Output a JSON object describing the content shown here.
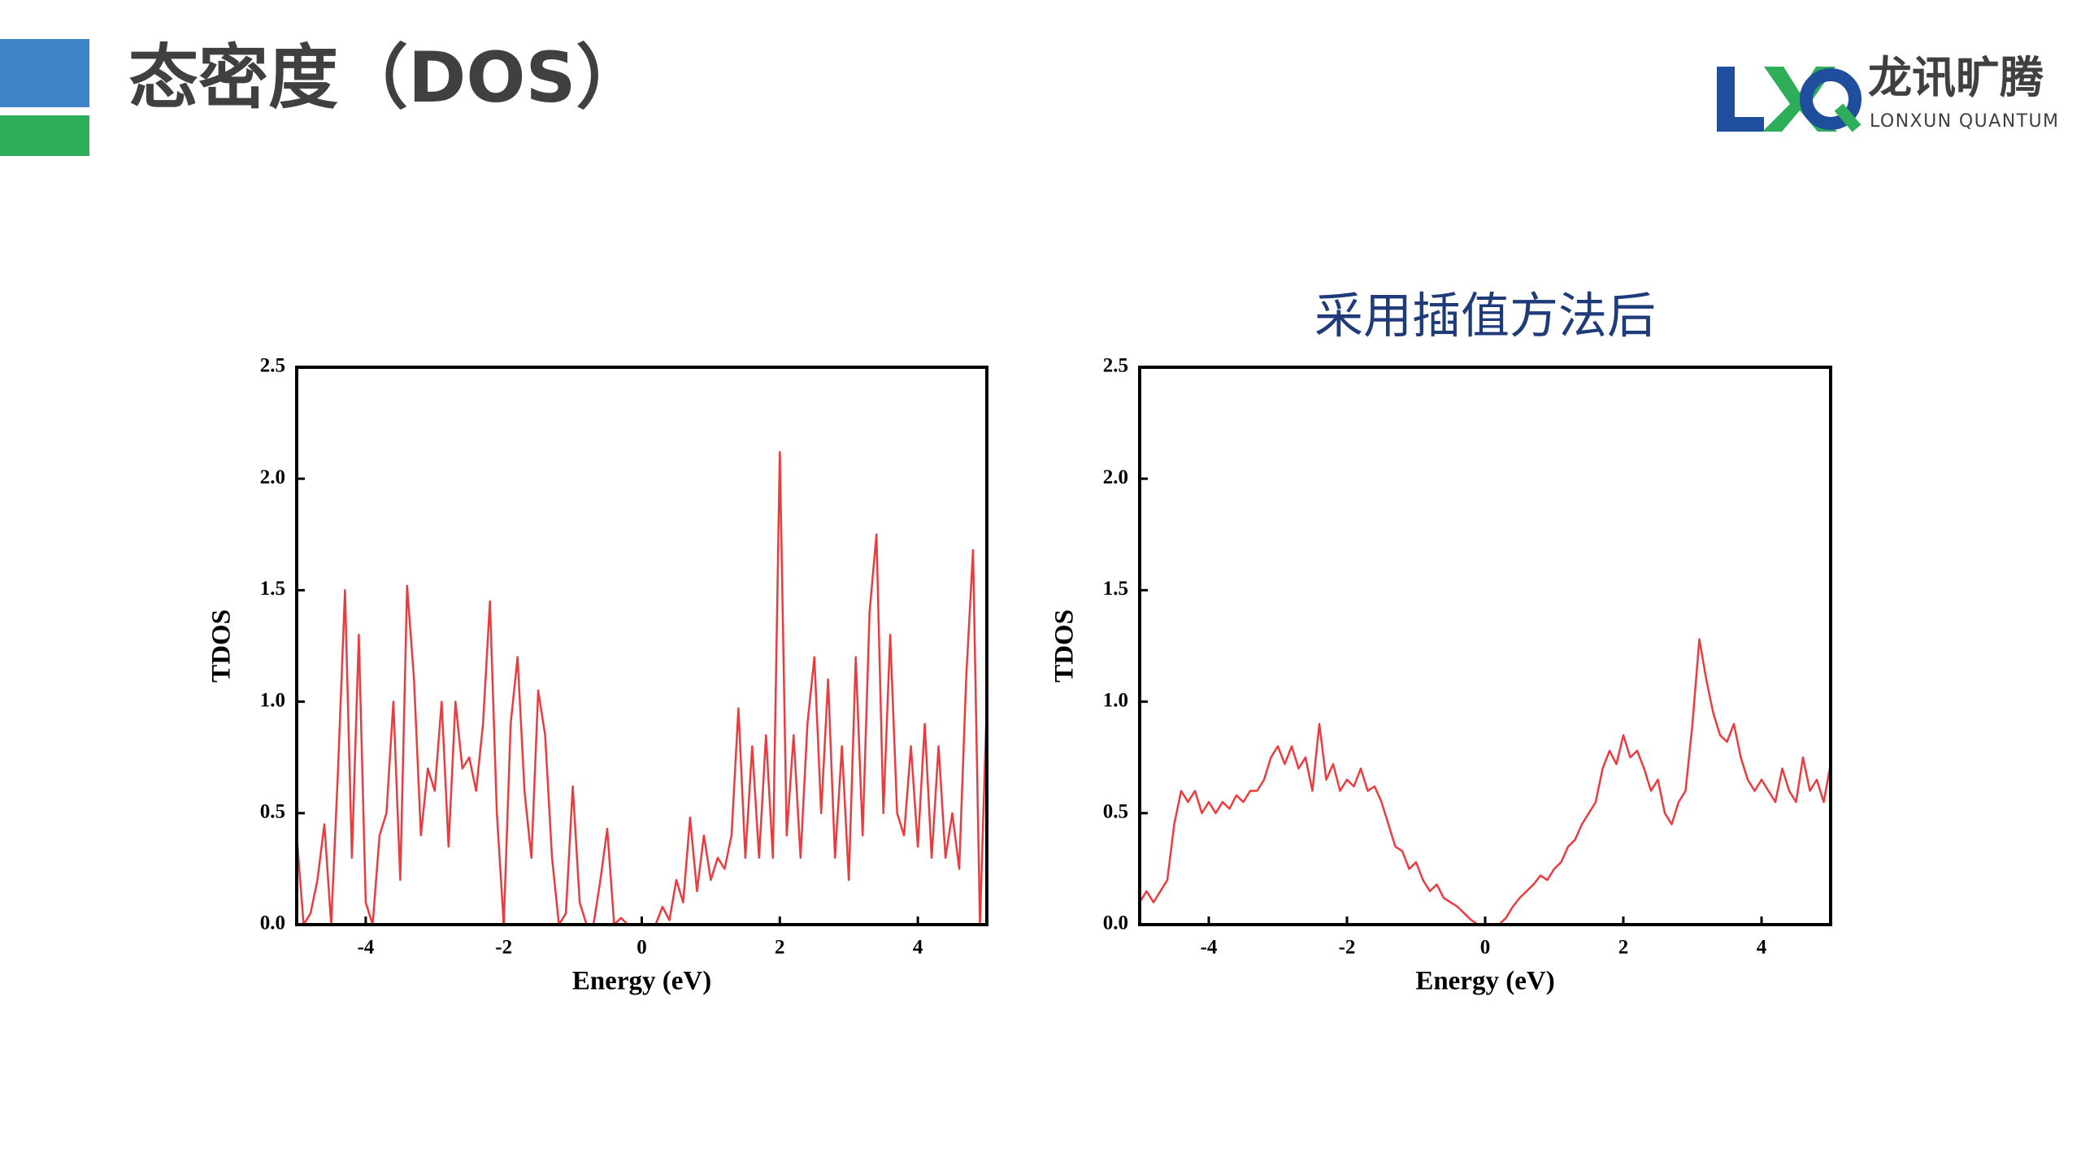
{
  "header": {
    "title": "态密度（DOS）",
    "logo_name": "龙讯旷腾",
    "logo_subtitle": "LONXUN QUANTUM"
  },
  "chart_data": [
    {
      "type": "line",
      "xlabel": "Energy (eV)",
      "ylabel": "TDOS",
      "color": "#ec3b3f",
      "xlim": [
        -5,
        5
      ],
      "ylim": [
        0,
        2.5
      ],
      "xticks": [
        -4,
        -2,
        0,
        2,
        4
      ],
      "yticks": [
        {
          "value": 0,
          "label": "0.0"
        },
        {
          "value": 0.5,
          "label": "0.5"
        },
        {
          "value": 1,
          "label": "1.0"
        },
        {
          "value": 1.5,
          "label": "1.5"
        },
        {
          "value": 2,
          "label": "2.0"
        },
        {
          "value": 2.5,
          "label": "2.5"
        }
      ],
      "x": [
        -5.0,
        -4.9,
        -4.8,
        -4.7,
        -4.6,
        -4.5,
        -4.4,
        -4.3,
        -4.2,
        -4.1,
        -4.0,
        -3.9,
        -3.8,
        -3.7,
        -3.6,
        -3.5,
        -3.4,
        -3.3,
        -3.2,
        -3.1,
        -3.0,
        -2.9,
        -2.8,
        -2.7,
        -2.6,
        -2.5,
        -2.4,
        -2.3,
        -2.2,
        -2.1,
        -2.0,
        -1.9,
        -1.8,
        -1.7,
        -1.6,
        -1.5,
        -1.4,
        -1.3,
        -1.2,
        -1.1,
        -1.0,
        -0.9,
        -0.8,
        -0.7,
        -0.6,
        -0.5,
        -0.4,
        -0.3,
        -0.2,
        -0.1,
        0.0,
        0.1,
        0.2,
        0.3,
        0.4,
        0.5,
        0.6,
        0.7,
        0.8,
        0.9,
        1.0,
        1.1,
        1.2,
        1.3,
        1.4,
        1.5,
        1.6,
        1.7,
        1.8,
        1.9,
        2.0,
        2.1,
        2.2,
        2.3,
        2.4,
        2.5,
        2.6,
        2.7,
        2.8,
        2.9,
        3.0,
        3.1,
        3.2,
        3.3,
        3.4,
        3.5,
        3.6,
        3.7,
        3.8,
        3.9,
        4.0,
        4.1,
        4.2,
        4.3,
        4.4,
        4.5,
        4.6,
        4.7,
        4.8,
        4.9,
        5.0
      ],
      "values": [
        0.4,
        0.0,
        0.05,
        0.2,
        0.45,
        0.0,
        0.7,
        1.5,
        0.3,
        1.3,
        0.1,
        0.0,
        0.4,
        0.5,
        1.0,
        0.2,
        1.52,
        1.1,
        0.4,
        0.7,
        0.6,
        1.0,
        0.35,
        1.0,
        0.7,
        0.75,
        0.6,
        0.9,
        1.45,
        0.5,
        0.0,
        0.9,
        1.2,
        0.6,
        0.3,
        1.05,
        0.85,
        0.3,
        0.0,
        0.05,
        0.62,
        0.1,
        0.0,
        0.0,
        0.2,
        0.43,
        0.0,
        0.03,
        0.0,
        0.0,
        0.0,
        0.0,
        0.0,
        0.08,
        0.02,
        0.2,
        0.1,
        0.48,
        0.15,
        0.4,
        0.2,
        0.3,
        0.25,
        0.4,
        0.97,
        0.3,
        0.8,
        0.3,
        0.85,
        0.3,
        2.12,
        0.4,
        0.85,
        0.3,
        0.9,
        1.2,
        0.5,
        1.1,
        0.3,
        0.8,
        0.2,
        1.2,
        0.4,
        1.4,
        1.75,
        0.5,
        1.3,
        0.5,
        0.4,
        0.8,
        0.35,
        0.9,
        0.3,
        0.8,
        0.3,
        0.5,
        0.25,
        1.1,
        1.68,
        0.0,
        1.0
      ]
    },
    {
      "type": "line",
      "title": "采用插值方法后",
      "xlabel": "Energy (eV)",
      "ylabel": "TDOS",
      "color": "#ec3b3f",
      "xlim": [
        -5,
        5
      ],
      "ylim": [
        0,
        2.5
      ],
      "xticks": [
        -4,
        -2,
        0,
        2,
        4
      ],
      "yticks": [
        {
          "value": 0,
          "label": "0.0"
        },
        {
          "value": 0.5,
          "label": "0.5"
        },
        {
          "value": 1,
          "label": "1.0"
        },
        {
          "value": 1.5,
          "label": "1.5"
        },
        {
          "value": 2,
          "label": "2.0"
        },
        {
          "value": 2.5,
          "label": "2.5"
        }
      ],
      "x": [
        -5.0,
        -4.9,
        -4.8,
        -4.7,
        -4.6,
        -4.5,
        -4.4,
        -4.3,
        -4.2,
        -4.1,
        -4.0,
        -3.9,
        -3.8,
        -3.7,
        -3.6,
        -3.5,
        -3.4,
        -3.3,
        -3.2,
        -3.1,
        -3.0,
        -2.9,
        -2.8,
        -2.7,
        -2.6,
        -2.5,
        -2.4,
        -2.3,
        -2.2,
        -2.1,
        -2.0,
        -1.9,
        -1.8,
        -1.7,
        -1.6,
        -1.5,
        -1.4,
        -1.3,
        -1.2,
        -1.1,
        -1.0,
        -0.9,
        -0.8,
        -0.7,
        -0.6,
        -0.5,
        -0.4,
        -0.3,
        -0.2,
        -0.1,
        0.0,
        0.1,
        0.2,
        0.3,
        0.4,
        0.5,
        0.6,
        0.7,
        0.8,
        0.9,
        1.0,
        1.1,
        1.2,
        1.3,
        1.4,
        1.5,
        1.6,
        1.7,
        1.8,
        1.9,
        2.0,
        2.1,
        2.2,
        2.3,
        2.4,
        2.5,
        2.6,
        2.7,
        2.8,
        2.9,
        3.0,
        3.1,
        3.2,
        3.3,
        3.4,
        3.5,
        3.6,
        3.7,
        3.8,
        3.9,
        4.0,
        4.1,
        4.2,
        4.3,
        4.4,
        4.5,
        4.6,
        4.7,
        4.8,
        4.9,
        5.0
      ],
      "values": [
        0.1,
        0.15,
        0.1,
        0.15,
        0.2,
        0.45,
        0.6,
        0.55,
        0.6,
        0.5,
        0.55,
        0.5,
        0.55,
        0.52,
        0.58,
        0.55,
        0.6,
        0.6,
        0.65,
        0.75,
        0.8,
        0.72,
        0.8,
        0.7,
        0.75,
        0.6,
        0.9,
        0.65,
        0.72,
        0.6,
        0.65,
        0.62,
        0.7,
        0.6,
        0.62,
        0.55,
        0.45,
        0.35,
        0.33,
        0.25,
        0.28,
        0.2,
        0.15,
        0.18,
        0.12,
        0.1,
        0.08,
        0.05,
        0.02,
        0.0,
        0.0,
        0.0,
        0.0,
        0.03,
        0.08,
        0.12,
        0.15,
        0.18,
        0.22,
        0.2,
        0.25,
        0.28,
        0.35,
        0.38,
        0.45,
        0.5,
        0.55,
        0.7,
        0.78,
        0.72,
        0.85,
        0.75,
        0.78,
        0.7,
        0.6,
        0.65,
        0.5,
        0.45,
        0.55,
        0.6,
        0.9,
        1.28,
        1.1,
        0.95,
        0.85,
        0.82,
        0.9,
        0.75,
        0.65,
        0.6,
        0.65,
        0.6,
        0.55,
        0.7,
        0.6,
        0.55,
        0.75,
        0.6,
        0.65,
        0.55,
        0.72
      ]
    }
  ]
}
